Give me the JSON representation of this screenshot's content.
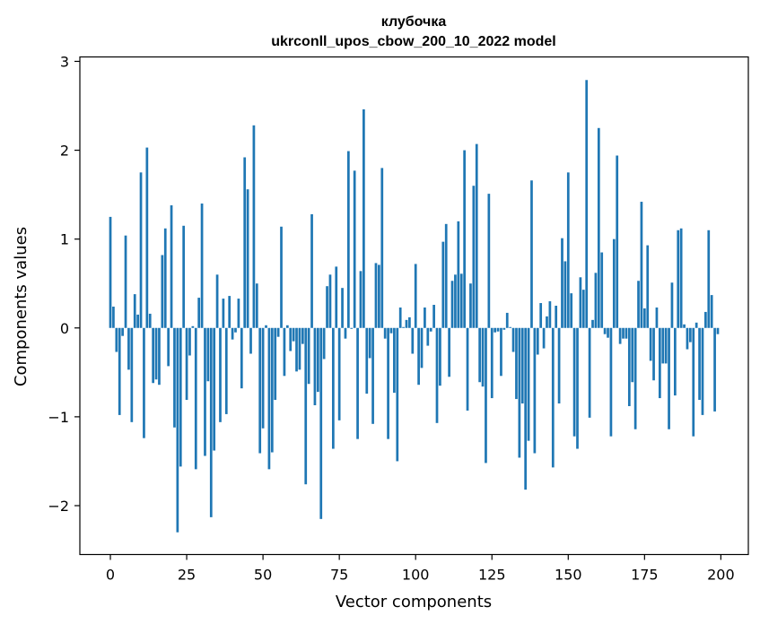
{
  "chart_data": {
    "type": "bar",
    "title": "клубочка",
    "subtitle": "ukrconll_upos_cbow_200_10_2022 model",
    "xlabel": "Vector components",
    "ylabel": "Components values",
    "xlim": [
      -10,
      209
    ],
    "ylim": [
      -2.55,
      3.05
    ],
    "xticks": [
      0,
      25,
      50,
      75,
      100,
      125,
      150,
      175,
      200
    ],
    "yticks": [
      -2,
      -1,
      0,
      1,
      2,
      3
    ],
    "ytick_labels": [
      "−2",
      "−1",
      "0",
      "1",
      "2",
      "3"
    ],
    "bar_color": "#1f77b4",
    "grid": false,
    "x": [
      0,
      1,
      2,
      3,
      4,
      5,
      6,
      7,
      8,
      9,
      10,
      11,
      12,
      13,
      14,
      15,
      16,
      17,
      18,
      19,
      20,
      21,
      22,
      23,
      24,
      25,
      26,
      27,
      28,
      29,
      30,
      31,
      32,
      33,
      34,
      35,
      36,
      37,
      38,
      39,
      40,
      41,
      42,
      43,
      44,
      45,
      46,
      47,
      48,
      49,
      50,
      51,
      52,
      53,
      54,
      55,
      56,
      57,
      58,
      59,
      60,
      61,
      62,
      63,
      64,
      65,
      66,
      67,
      68,
      69,
      70,
      71,
      72,
      73,
      74,
      75,
      76,
      77,
      78,
      79,
      80,
      81,
      82,
      83,
      84,
      85,
      86,
      87,
      88,
      89,
      90,
      91,
      92,
      93,
      94,
      95,
      96,
      97,
      98,
      99,
      100,
      101,
      102,
      103,
      104,
      105,
      106,
      107,
      108,
      109,
      110,
      111,
      112,
      113,
      114,
      115,
      116,
      117,
      118,
      119,
      120,
      121,
      122,
      123,
      124,
      125,
      126,
      127,
      128,
      129,
      130,
      131,
      132,
      133,
      134,
      135,
      136,
      137,
      138,
      139,
      140,
      141,
      142,
      143,
      144,
      145,
      146,
      147,
      148,
      149,
      150,
      151,
      152,
      153,
      154,
      155,
      156,
      157,
      158,
      159,
      160,
      161,
      162,
      163,
      164,
      165,
      166,
      167,
      168,
      169,
      170,
      171,
      172,
      173,
      174,
      175,
      176,
      177,
      178,
      179,
      180,
      181,
      182,
      183,
      184,
      185,
      186,
      187,
      188,
      189,
      190,
      191,
      192,
      193,
      194,
      195,
      196,
      197,
      198,
      199
    ],
    "values": [
      1.25,
      0.24,
      -0.27,
      -0.98,
      -0.09,
      1.04,
      -0.47,
      -1.06,
      0.38,
      0.15,
      1.75,
      -1.24,
      2.03,
      0.16,
      -0.62,
      -0.58,
      -0.64,
      0.82,
      1.12,
      -0.43,
      1.38,
      -1.12,
      -2.3,
      -1.56,
      1.15,
      -0.81,
      -0.31,
      0.02,
      -1.59,
      0.34,
      1.4,
      -1.44,
      -0.6,
      -2.13,
      -1.38,
      0.6,
      -1.06,
      0.33,
      -0.97,
      0.36,
      -0.13,
      -0.05,
      0.33,
      -0.68,
      1.92,
      1.56,
      -0.29,
      2.28,
      0.5,
      -1.41,
      -1.13,
      0.03,
      -1.59,
      -1.4,
      -0.81,
      -0.1,
      1.14,
      -0.54,
      0.03,
      -0.26,
      -0.15,
      -0.49,
      -0.47,
      -0.18,
      -1.76,
      -0.63,
      1.28,
      -0.87,
      -0.72,
      -2.15,
      -0.35,
      0.47,
      0.6,
      -1.36,
      0.69,
      -1.04,
      0.45,
      -0.12,
      1.99,
      -0.01,
      1.77,
      -1.25,
      0.64,
      2.46,
      -0.74,
      -0.34,
      -1.08,
      0.73,
      0.71,
      1.8,
      -0.12,
      -1.25,
      -0.06,
      -0.73,
      -1.5,
      0.23,
      0.01,
      0.09,
      0.12,
      -0.29,
      0.72,
      -0.64,
      -0.45,
      0.23,
      -0.2,
      -0.04,
      0.26,
      -1.07,
      -0.65,
      0.97,
      1.17,
      -0.55,
      0.53,
      0.6,
      1.2,
      0.61,
      2.0,
      -0.93,
      0.5,
      1.6,
      2.07,
      -0.61,
      -0.66,
      -1.52,
      1.51,
      -0.79,
      -0.05,
      -0.04,
      -0.54,
      -0.02,
      0.17,
      0.01,
      -0.27,
      -0.8,
      -1.46,
      -0.85,
      -1.82,
      -1.27,
      1.66,
      -1.41,
      -0.3,
      0.28,
      -0.23,
      0.13,
      0.3,
      -1.57,
      0.25,
      -0.85,
      1.01,
      0.75,
      1.75,
      0.39,
      -1.22,
      -1.36,
      0.57,
      0.43,
      2.79,
      -1.01,
      0.09,
      0.62,
      2.25,
      0.85,
      -0.07,
      -0.11,
      -1.22,
      1.0,
      1.94,
      -0.18,
      -0.12,
      -0.12,
      -0.88,
      -0.61,
      -1.14,
      0.53,
      1.42,
      0.22,
      0.93,
      -0.37,
      -0.59,
      0.23,
      -0.79,
      -0.4,
      -0.4,
      -1.14,
      0.51,
      -0.76,
      1.1,
      1.12,
      0.04,
      -0.24,
      -0.16,
      -1.22,
      0.06,
      -0.81,
      -0.98,
      0.18,
      1.1,
      0.37,
      -0.94,
      -0.07
    ]
  }
}
